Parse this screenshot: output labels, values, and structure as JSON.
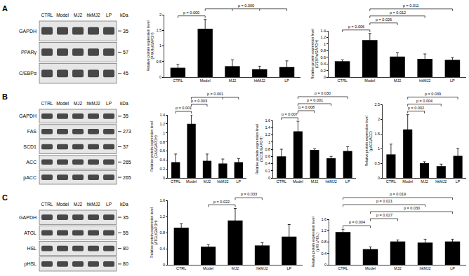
{
  "chart_data": [
    {
      "type": "bar",
      "categories": [
        "CTRL",
        "Model",
        "MJ2",
        "hkMJ2",
        "LP"
      ],
      "values": [
        0.3,
        1.55,
        0.35,
        0.25,
        0.32
      ],
      "errors": [
        0.1,
        0.3,
        0.2,
        0.1,
        0.2
      ],
      "color": "#000000",
      "y_label": "Relative protein expression level (PPARγ/GAPDH)",
      "ylim": [
        0,
        2
      ],
      "yticks": [
        0,
        0.5,
        1,
        1.5,
        2
      ],
      "grid": false,
      "comparisons": [
        {
          "groups": [
            "CTRL",
            "Model"
          ],
          "label": "p = 0.000"
        },
        {
          "groups": [
            "Model",
            "MJ2",
            "hkMJ2",
            "LP"
          ],
          "label": "p = 0.000"
        }
      ]
    },
    {
      "type": "bar",
      "categories": [
        "CTRL",
        "Model",
        "MJ2",
        "hkMJ2",
        "LP"
      ],
      "values": [
        0.48,
        1.12,
        0.62,
        0.55,
        0.52
      ],
      "errors": [
        0.04,
        0.2,
        0.12,
        0.15,
        0.07
      ],
      "color": "#000000",
      "y_label": "Relative protein expression level (C/EBPα/GAPDH)",
      "ylim": [
        0,
        1.4
      ],
      "yticks": [
        0,
        0.2,
        0.4,
        0.6,
        0.8,
        1,
        1.2,
        1.4
      ],
      "grid": false,
      "comparisons": [
        {
          "groups": [
            "CTRL",
            "Model"
          ],
          "label": "p = 0.006"
        },
        {
          "groups": [
            "Model",
            "MJ2"
          ],
          "label": "p = 0.026"
        },
        {
          "groups": [
            "Model",
            "hkMJ2"
          ],
          "label": "p = 0.012"
        },
        {
          "groups": [
            "Model",
            "LP"
          ],
          "label": "p = 0.011"
        }
      ]
    },
    {
      "type": "bar",
      "categories": [
        "CTRL",
        "Model",
        "MJ2",
        "hkMJ2",
        "LP"
      ],
      "values": [
        0.35,
        1.2,
        0.38,
        0.32,
        0.35
      ],
      "errors": [
        0.18,
        0.2,
        0.15,
        0.1,
        0.08
      ],
      "color": "#000000",
      "y_label": "Relative protein expression level (FAS/GAPDH)",
      "ylim": [
        0,
        1.4
      ],
      "yticks": [
        0,
        0.2,
        0.4,
        0.6,
        0.8,
        1,
        1.2,
        1.4
      ],
      "grid": false,
      "comparisons": [
        {
          "groups": [
            "CTRL",
            "Model"
          ],
          "label": "p = 0.001"
        },
        {
          "groups": [
            "Model",
            "MJ2"
          ],
          "label": "p = 0.003"
        },
        {
          "groups": [
            "Model",
            "hkMJ2",
            "LP"
          ],
          "label": "p = 0.001"
        }
      ]
    },
    {
      "type": "bar",
      "categories": [
        "CTRL",
        "Model",
        "MJ2",
        "hkMJ2",
        "LP"
      ],
      "values": [
        0.6,
        1.3,
        0.78,
        0.55,
        0.75
      ],
      "errors": [
        0.2,
        0.28,
        0.03,
        0.05,
        0.12
      ],
      "color": "#000000",
      "y_label": "Relative protein expression level (SCD1/GAPDH)",
      "ylim": [
        0,
        1.6
      ],
      "yticks": [
        0,
        0.2,
        0.4,
        0.6,
        0.8,
        1,
        1.2,
        1.4,
        1.6
      ],
      "grid": false,
      "comparisons": [
        {
          "groups": [
            "CTRL",
            "Model"
          ],
          "label": "p = 0.007"
        },
        {
          "groups": [
            "Model",
            "MJ2"
          ],
          "label": "p = 0.008"
        },
        {
          "groups": [
            "Model",
            "hkMJ2"
          ],
          "label": "p = 0.001"
        },
        {
          "groups": [
            "Model",
            "LP"
          ],
          "label": "p = 0.030"
        }
      ]
    },
    {
      "type": "bar",
      "categories": [
        "CTRL",
        "Model",
        "MJ2",
        "hkMJ2",
        "LP"
      ],
      "values": [
        0.8,
        1.65,
        0.5,
        0.4,
        0.75
      ],
      "errors": [
        0.35,
        0.5,
        0.05,
        0.07,
        0.25
      ],
      "color": "#000000",
      "y_label": "Relative protein expression level (pACC/ACC)",
      "ylim": [
        0,
        2.5
      ],
      "yticks": [
        0,
        0.5,
        1,
        1.5,
        2,
        2.5
      ],
      "grid": false,
      "comparisons": [
        {
          "groups": [
            "Model",
            "MJ2"
          ],
          "label": "p = 0.002"
        },
        {
          "groups": [
            "Model",
            "hkMJ2"
          ],
          "label": "p = 0.004"
        },
        {
          "groups": [
            "Model",
            "LP"
          ],
          "label": "p = 0.039"
        }
      ]
    },
    {
      "type": "bar",
      "categories": [
        "CTRL",
        "Model",
        "MJ2",
        "hkMJ2",
        "LP"
      ],
      "values": [
        0.92,
        0.45,
        1.1,
        0.48,
        0.7
      ],
      "errors": [
        0.1,
        0.05,
        0.3,
        0.07,
        0.3
      ],
      "color": "#000000",
      "y_label": "Relative protein expression level (ATGL/GAPDH)",
      "ylim": [
        0,
        1.6
      ],
      "yticks": [
        0,
        0.4,
        0.8,
        1.2,
        1.6
      ],
      "grid": false,
      "comparisons": [
        {
          "groups": [
            "Model",
            "MJ2"
          ],
          "label": "p = 0.022"
        },
        {
          "groups": [
            "MJ2",
            "hkMJ2"
          ],
          "label": "p = 0.033"
        }
      ]
    },
    {
      "type": "bar",
      "categories": [
        "CTRL",
        "Model",
        "MJ2",
        "hkMJ2",
        "LP"
      ],
      "values": [
        1.15,
        0.55,
        0.82,
        0.78,
        0.82
      ],
      "errors": [
        0.1,
        0.08,
        0.05,
        0.12,
        0.08
      ],
      "color": "#000000",
      "y_label": "Relative protein expression level (pHSL/HSL)",
      "ylim": [
        0,
        1.6
      ],
      "yticks": [
        0,
        0.4,
        0.8,
        1.2,
        1.6
      ],
      "grid": false,
      "comparisons": [
        {
          "groups": [
            "CTRL",
            "Model"
          ],
          "label": "p = 0.004"
        },
        {
          "groups": [
            "Model",
            "MJ2"
          ],
          "label": "p = 0.027"
        },
        {
          "groups": [
            "Model",
            "LP"
          ],
          "label": "p = 0.030"
        },
        {
          "groups": [
            "CTRL",
            "hkMJ2"
          ],
          "label": "p = 0.021"
        },
        {
          "groups": [
            "CTRL",
            "LP"
          ],
          "label": "p = 0.019"
        }
      ]
    }
  ],
  "blots": [
    {
      "panel": "A",
      "lanes": [
        "CTRL",
        "Model",
        "MJ2",
        "hkMJ2",
        "LP"
      ],
      "unit": "kDa",
      "proteins": [
        {
          "name": "GAPDH",
          "kda": "35"
        },
        {
          "name": "PPARγ",
          "kda": "57"
        },
        {
          "name": "C/EBPα",
          "kda": "45"
        }
      ]
    },
    {
      "panel": "B",
      "lanes": [
        "CTRL",
        "Model",
        "MJ2",
        "hkMJ2",
        "LP"
      ],
      "unit": "kDa",
      "proteins": [
        {
          "name": "GAPDH",
          "kda": "35"
        },
        {
          "name": "FAS",
          "kda": "273"
        },
        {
          "name": "SCD1",
          "kda": "37"
        },
        {
          "name": "ACC",
          "kda": "265"
        },
        {
          "name": "pACC",
          "kda": "265"
        }
      ]
    },
    {
      "panel": "C",
      "lanes": [
        "CTRL",
        "Model",
        "MJ2",
        "hkMJ2",
        "LP"
      ],
      "unit": "kDa",
      "proteins": [
        {
          "name": "GAPDH",
          "kda": "35"
        },
        {
          "name": "ATGL",
          "kda": "55"
        },
        {
          "name": "HSL",
          "kda": "80"
        },
        {
          "name": "pHSL",
          "kda": "80"
        }
      ]
    }
  ]
}
